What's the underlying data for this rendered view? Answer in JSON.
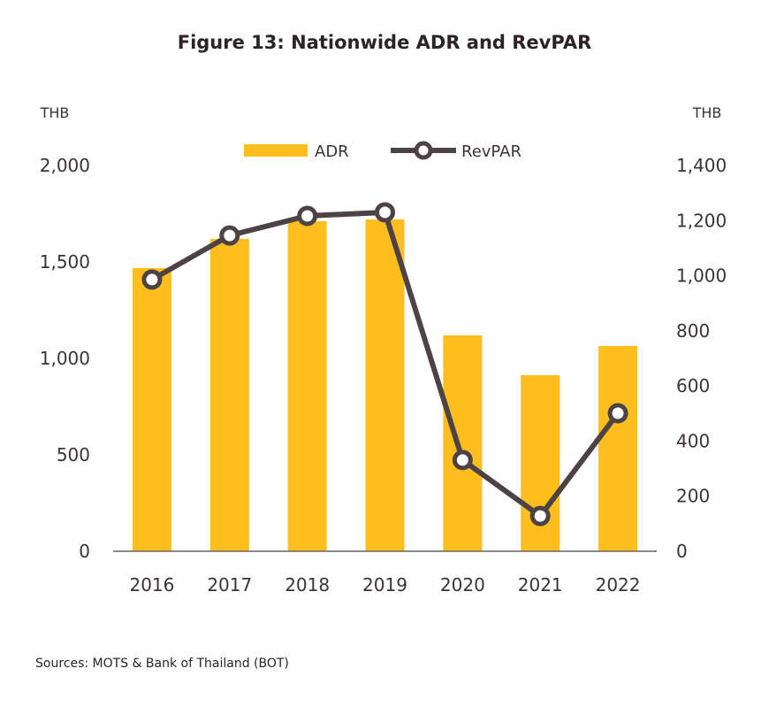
{
  "chart_data": {
    "type": "bar",
    "title": "Figure 13: Nationwide ADR and RevPAR",
    "categories": [
      "2016",
      "2017",
      "2018",
      "2019",
      "2020",
      "2021",
      "2022"
    ],
    "series": [
      {
        "name": "ADR",
        "type": "bar",
        "axis": "left",
        "color": "#FDBE1E",
        "values": [
          1468,
          1619,
          1711,
          1720,
          1119,
          913,
          1064
        ]
      },
      {
        "name": "RevPAR",
        "type": "line",
        "axis": "right",
        "color": "#4D4345",
        "marker": "circle",
        "values": [
          986,
          1146,
          1217,
          1230,
          331,
          128,
          501
        ]
      }
    ],
    "left_axis": {
      "label": "THB",
      "ylim": [
        0,
        2000
      ],
      "ticks": [
        0,
        500,
        1000,
        1500,
        2000
      ],
      "tick_labels": [
        "0",
        "500",
        "1,000",
        "1,500",
        "2,000"
      ]
    },
    "right_axis": {
      "label": "THB",
      "ylim": [
        0,
        1400
      ],
      "ticks": [
        0,
        200,
        400,
        600,
        800,
        1000,
        1200,
        1400
      ],
      "tick_labels": [
        "0",
        "200",
        "400",
        "600",
        "800",
        "1,000",
        "1,200",
        "1,400"
      ]
    },
    "legend": {
      "position": "top-center",
      "entries": [
        "ADR",
        "RevPAR"
      ]
    },
    "grid": false,
    "source": "Sources: MOTS &  Bank of Thailand (BOT)"
  }
}
